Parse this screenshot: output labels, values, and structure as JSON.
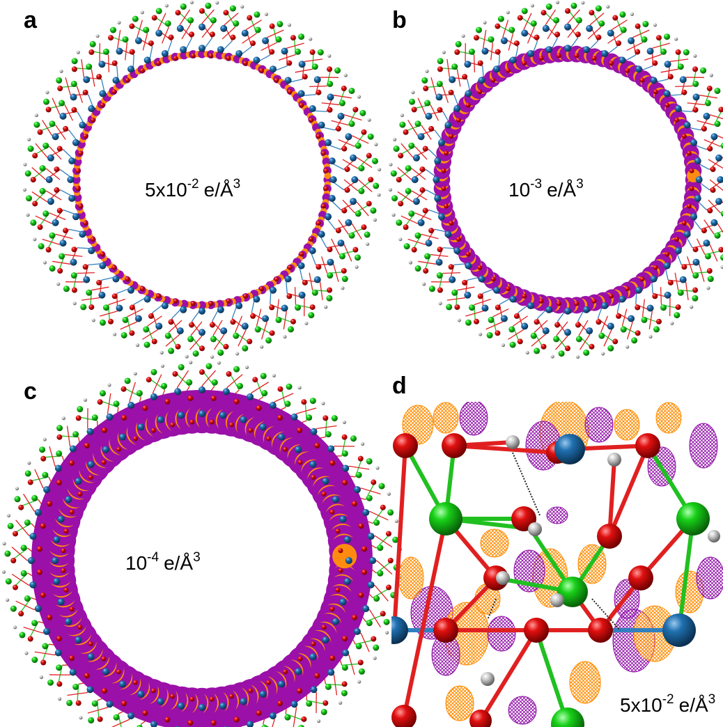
{
  "panels": [
    {
      "label": "a",
      "annotation": {
        "base": "5x10",
        "exponent": "-2",
        "unit": "e/Å",
        "unit_exponent": "3"
      }
    },
    {
      "label": "b",
      "annotation": {
        "base": "10",
        "exponent": "-3",
        "unit": "e/Å",
        "unit_exponent": "3"
      }
    },
    {
      "label": "c",
      "annotation": {
        "base": "10",
        "exponent": "-4",
        "unit": "e/Å",
        "unit_exponent": "3"
      }
    },
    {
      "label": "d",
      "annotation": {
        "base": "5x10",
        "exponent": "-2",
        "unit": "e/Å",
        "unit_exponent": "3"
      }
    }
  ]
}
